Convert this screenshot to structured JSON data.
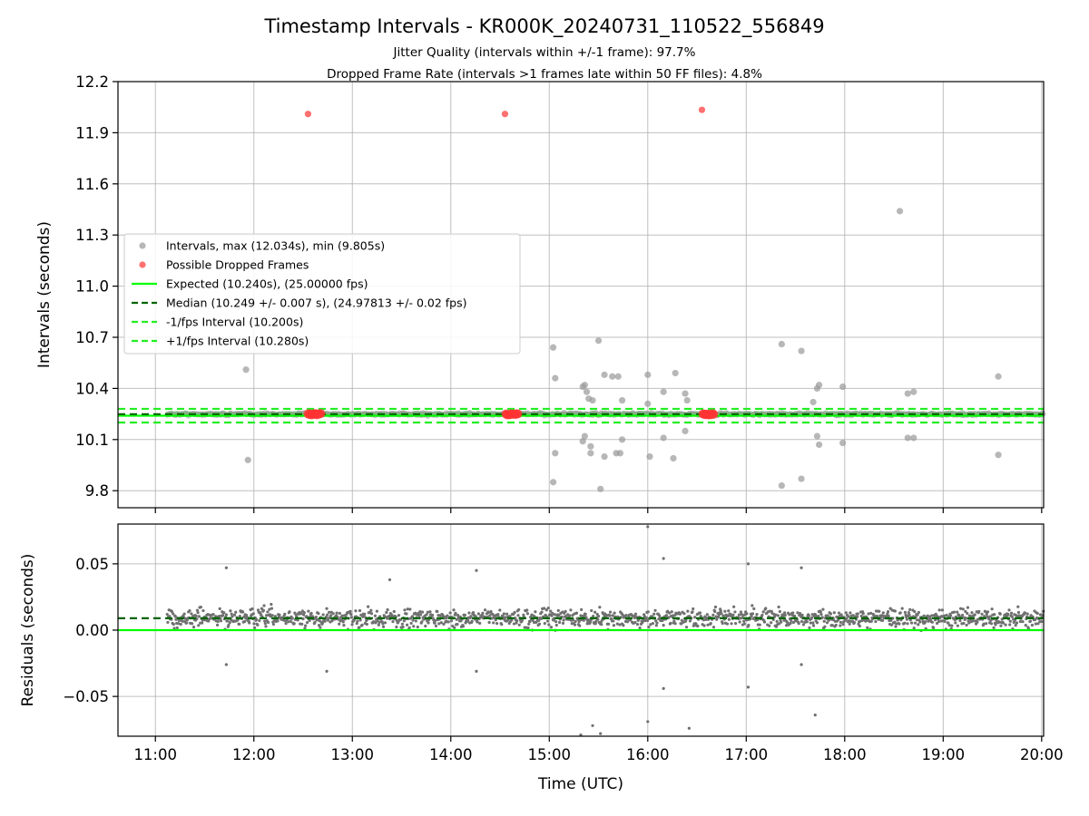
{
  "chart_data": {
    "type": "scatter",
    "title": "Timestamp Intervals - KR000K_20240731_110522_556849",
    "subtitle_lines": [
      "Jitter Quality (intervals within +/-1 frame): 97.7%",
      "Dropped Frame Rate (intervals >1 frames late within 50 FF files): 4.8%"
    ],
    "xlabel": "Time (UTC)",
    "x_ticks": [
      "11:00",
      "12:00",
      "13:00",
      "14:00",
      "15:00",
      "16:00",
      "17:00",
      "18:00",
      "19:00",
      "20:00"
    ],
    "xlim_hours": [
      10.62,
      20.02
    ],
    "colors": {
      "intervals": "#999999",
      "dropped": "#ff3333",
      "expected": "#00ff00",
      "median": "#006400",
      "minus_fps": "#22ee22",
      "plus_fps": "#22ee22",
      "residuals": "#707070"
    },
    "top_panel": {
      "ylabel": "Intervals (seconds)",
      "ylim": [
        9.7,
        12.2
      ],
      "y_ticks": [
        "9.8",
        "10.1",
        "10.4",
        "10.7",
        "11.0",
        "11.3",
        "11.6",
        "11.9",
        "12.2"
      ],
      "grid": true,
      "legend_position": "center-left",
      "legend": [
        {
          "label": "Intervals, max (12.034s), min (9.805s)",
          "marker": "dot",
          "color": "#999999"
        },
        {
          "label": "Possible Dropped Frames",
          "marker": "dot",
          "color": "#ff3333"
        },
        {
          "label": "Expected (10.240s), (25.00000 fps)",
          "marker": "solid",
          "color": "#00ff00"
        },
        {
          "label": "Median (10.249 +/- 0.007 s), (24.97813 +/- 0.02 fps)",
          "marker": "dashed",
          "color": "#006400"
        },
        {
          "label": "-1/fps Interval (10.200s)",
          "marker": "dashed",
          "color": "#22ee22"
        },
        {
          "label": "+1/fps Interval (10.280s)",
          "marker": "dashed",
          "color": "#22ee22"
        }
      ],
      "lines": {
        "expected": 10.24,
        "median": 10.249,
        "minus_fps": 10.2,
        "plus_fps": 10.28
      },
      "series": [
        {
          "name": "Intervals, max (12.034s), min (9.805s)",
          "band": {
            "x_start": 11.12,
            "x_end": 20.02,
            "y_center": 10.249,
            "y_spread": 0.015
          },
          "outliers": [
            [
              11.92,
              10.51
            ],
            [
              11.94,
              9.98
            ],
            [
              15.04,
              10.64
            ],
            [
              15.06,
              10.46
            ],
            [
              15.06,
              10.02
            ],
            [
              15.04,
              9.85
            ],
            [
              15.34,
              10.41
            ],
            [
              15.36,
              10.42
            ],
            [
              15.38,
              10.38
            ],
            [
              15.36,
              10.12
            ],
            [
              15.34,
              10.09
            ],
            [
              15.4,
              10.34
            ],
            [
              15.44,
              10.33
            ],
            [
              15.42,
              10.06
            ],
            [
              15.42,
              10.02
            ],
            [
              15.5,
              10.68
            ],
            [
              15.52,
              9.81
            ],
            [
              15.56,
              10.48
            ],
            [
              15.56,
              10.0
            ],
            [
              15.64,
              10.47
            ],
            [
              15.7,
              10.47
            ],
            [
              15.68,
              10.02
            ],
            [
              15.72,
              10.02
            ],
            [
              15.74,
              10.33
            ],
            [
              15.74,
              10.1
            ],
            [
              16.0,
              10.48
            ],
            [
              16.0,
              10.31
            ],
            [
              16.02,
              10.0
            ],
            [
              16.16,
              10.38
            ],
            [
              16.16,
              10.11
            ],
            [
              16.28,
              10.49
            ],
            [
              16.26,
              9.99
            ],
            [
              16.38,
              10.37
            ],
            [
              16.4,
              10.33
            ],
            [
              16.38,
              10.15
            ],
            [
              17.36,
              10.66
            ],
            [
              17.36,
              9.83
            ],
            [
              17.56,
              10.62
            ],
            [
              17.56,
              9.87
            ],
            [
              17.68,
              10.32
            ],
            [
              17.72,
              10.4
            ],
            [
              17.74,
              10.42
            ],
            [
              17.72,
              10.12
            ],
            [
              17.74,
              10.07
            ],
            [
              17.98,
              10.41
            ],
            [
              17.98,
              10.08
            ],
            [
              18.56,
              11.44
            ],
            [
              18.64,
              10.37
            ],
            [
              18.7,
              10.38
            ],
            [
              18.64,
              10.11
            ],
            [
              18.7,
              10.11
            ],
            [
              19.56,
              10.47
            ],
            [
              19.56,
              10.01
            ]
          ]
        },
        {
          "name": "Possible Dropped Frames",
          "points": [
            [
              12.55,
              12.01
            ],
            [
              14.55,
              12.01
            ],
            [
              16.55,
              12.034
            ]
          ],
          "clusters": [
            {
              "x_start": 12.55,
              "x_end": 12.68,
              "y": 10.249
            },
            {
              "x_start": 14.56,
              "x_end": 14.68,
              "y": 10.249
            },
            {
              "x_start": 16.56,
              "x_end": 16.68,
              "y": 10.249
            }
          ]
        }
      ]
    },
    "bottom_panel": {
      "ylabel": "Residuals (seconds)",
      "ylim": [
        -0.08,
        0.08
      ],
      "y_ticks": [
        "−0.05",
        "0.00",
        "0.05"
      ],
      "grid": true,
      "lines": {
        "expected": 0.0,
        "median": 0.009
      },
      "series": [
        {
          "name": "Residuals",
          "band": {
            "x_start": 11.12,
            "x_end": 20.02,
            "y_center": 0.009,
            "y_spread": 0.007
          },
          "outliers": [
            [
              11.72,
              0.047
            ],
            [
              11.72,
              -0.026
            ],
            [
              12.74,
              -0.031
            ],
            [
              13.38,
              0.038
            ],
            [
              14.26,
              0.045
            ],
            [
              14.26,
              -0.031
            ],
            [
              15.32,
              -0.08
            ],
            [
              15.44,
              -0.072
            ],
            [
              15.52,
              -0.078
            ],
            [
              16.0,
              0.078
            ],
            [
              16.0,
              -0.069
            ],
            [
              16.16,
              0.054
            ],
            [
              16.16,
              -0.044
            ],
            [
              16.42,
              -0.074
            ],
            [
              17.02,
              0.05
            ],
            [
              17.02,
              -0.043
            ],
            [
              17.56,
              0.047
            ],
            [
              17.56,
              -0.026
            ],
            [
              17.7,
              -0.064
            ]
          ]
        }
      ]
    }
  }
}
